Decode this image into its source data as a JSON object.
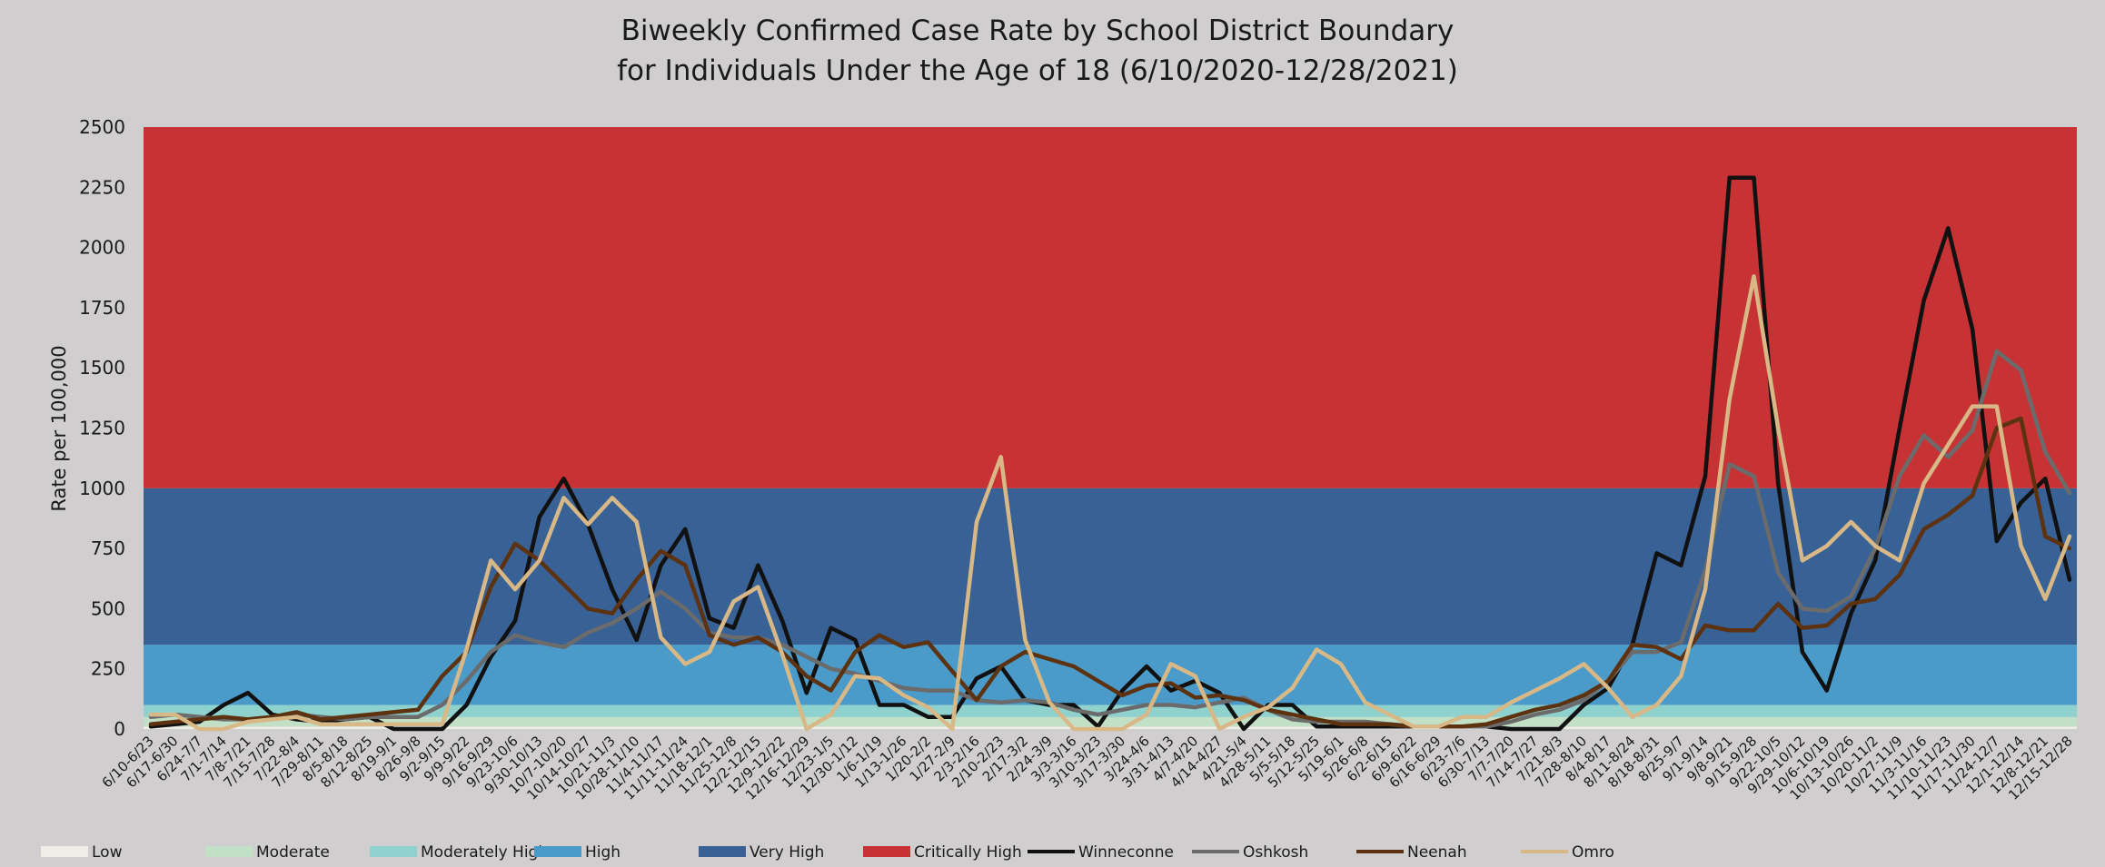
{
  "chart_data": {
    "type": "line",
    "title_line1": "Biweekly Confirmed Case Rate by School District Boundary",
    "title_line2": "for Individuals Under the Age of 18  (6/10/2020-12/28/2021)",
    "xlabel": "",
    "ylabel": "Rate per 100,000",
    "ylim": [
      0,
      2500
    ],
    "yticks": [
      0,
      250,
      500,
      750,
      1000,
      1250,
      1500,
      1750,
      2000,
      2250,
      2500
    ],
    "grid": false,
    "legend_position": "bottom",
    "categories": [
      "6/10-6/23",
      "6/17-6/30",
      "6/24-7/7",
      "7/1-7/14",
      "7/8-7/21",
      "7/15-7/28",
      "7/22-8/4",
      "7/29-8/11",
      "8/5-8/18",
      "8/12-8/25",
      "8/19-9/1",
      "8/26-9/8",
      "9/2-9/15",
      "9/9-9/22",
      "9/16-9/29",
      "9/23-10/6",
      "9/30-10/13",
      "10/7-10/20",
      "10/14-10/27",
      "10/21-11/3",
      "10/28-11/10",
      "11/4-11/17",
      "11/11-11/24",
      "11/18-12/1",
      "11/25-12/8",
      "12/2-12/15",
      "12/9-12/22",
      "12/16-12/29",
      "12/23-1/5",
      "12/30-1/12",
      "1/6-1/19",
      "1/13-1/26",
      "1/20-2/2",
      "1/27-2/9",
      "2/3-2/16",
      "2/10-2/23",
      "2/17-3/2",
      "2/24-3/9",
      "3/3-3/16",
      "3/10-3/23",
      "3/17-3/30",
      "3/24-4/6",
      "3/31-4/13",
      "4/7-4/20",
      "4/14-4/27",
      "4/21-5/4",
      "4/28-5/11",
      "5/5-5/18",
      "5/12-5/25",
      "5/19-6/1",
      "5/26-6/8",
      "6/2-6/15",
      "6/9-6/22",
      "6/16-6/29",
      "6/23-7/6",
      "6/30-7/13",
      "7/7-7/20",
      "7/14-7/27",
      "7/21-8/3",
      "7/28-8/10",
      "8/4-8/17",
      "8/11-8/24",
      "8/18-8/31",
      "8/25-9/7",
      "9/1-9/14",
      "9/8-9/21",
      "9/15-9/28",
      "9/22-10/5",
      "9/29-10/12",
      "10/6-10/19",
      "10/13-10/26",
      "10/20-11/2",
      "10/27-11/9",
      "11/3-11/16",
      "11/10-11/23",
      "11/17-11/30",
      "11/24-12/7",
      "12/1-12/14",
      "12/8-12/21",
      "12/15-12/28"
    ],
    "bands": [
      {
        "name": "Low",
        "from": 0,
        "to": 10,
        "color": "#eeeee6"
      },
      {
        "name": "Moderate",
        "from": 10,
        "to": 50,
        "color": "#c2e0c6"
      },
      {
        "name": "Moderately High",
        "from": 50,
        "to": 100,
        "color": "#8fd1cd"
      },
      {
        "name": "High",
        "from": 100,
        "to": 350,
        "color": "#4a9bc9"
      },
      {
        "name": "Very High",
        "from": 350,
        "to": 1000,
        "color": "#386196"
      },
      {
        "name": "Critically High",
        "from": 1000,
        "to": 2500,
        "color": "#c73335"
      }
    ],
    "series": [
      {
        "name": "Winneconne",
        "color": "#111111",
        "values": [
          10,
          20,
          30,
          100,
          150,
          60,
          40,
          30,
          40,
          50,
          0,
          0,
          0,
          100,
          300,
          450,
          880,
          1040,
          850,
          580,
          370,
          680,
          830,
          460,
          420,
          680,
          450,
          150,
          420,
          370,
          100,
          100,
          50,
          50,
          210,
          260,
          120,
          100,
          100,
          10,
          160,
          260,
          160,
          200,
          150,
          0,
          100,
          100,
          10,
          10,
          10,
          10,
          10,
          10,
          10,
          10,
          0,
          0,
          0,
          100,
          170,
          350,
          730,
          680,
          1050,
          2290,
          2290,
          1020,
          320,
          160,
          480,
          700,
          1250,
          1780,
          2080,
          1660,
          780,
          940,
          1040,
          620
        ]
      },
      {
        "name": "Oshkosh",
        "color": "#6b6b6b",
        "values": [
          50,
          60,
          50,
          40,
          40,
          50,
          60,
          50,
          40,
          50,
          50,
          50,
          100,
          200,
          320,
          390,
          360,
          340,
          400,
          440,
          500,
          570,
          500,
          400,
          380,
          380,
          350,
          300,
          250,
          230,
          200,
          170,
          160,
          160,
          120,
          110,
          120,
          110,
          80,
          60,
          80,
          100,
          100,
          90,
          110,
          130,
          80,
          40,
          30,
          30,
          30,
          20,
          10,
          10,
          10,
          10,
          30,
          60,
          80,
          120,
          200,
          320,
          320,
          360,
          660,
          1100,
          1050,
          650,
          500,
          490,
          550,
          750,
          1050,
          1220,
          1130,
          1240,
          1570,
          1490,
          1150,
          980
        ]
      },
      {
        "name": "Neenah",
        "color": "#5c3211",
        "values": [
          20,
          30,
          40,
          50,
          40,
          50,
          70,
          40,
          50,
          60,
          70,
          80,
          220,
          320,
          590,
          770,
          700,
          600,
          500,
          480,
          620,
          740,
          680,
          390,
          350,
          380,
          320,
          220,
          160,
          320,
          390,
          340,
          360,
          240,
          120,
          260,
          320,
          290,
          260,
          200,
          140,
          180,
          190,
          130,
          140,
          120,
          80,
          60,
          40,
          20,
          20,
          20,
          10,
          10,
          10,
          20,
          50,
          80,
          100,
          140,
          200,
          350,
          340,
          290,
          430,
          410,
          410,
          520,
          420,
          430,
          520,
          540,
          640,
          830,
          890,
          970,
          1250,
          1290,
          800,
          750
        ]
      },
      {
        "name": "Omro",
        "color": "#d7b886",
        "values": [
          60,
          60,
          0,
          0,
          30,
          40,
          50,
          20,
          20,
          20,
          20,
          20,
          20,
          330,
          700,
          580,
          700,
          960,
          850,
          960,
          860,
          380,
          270,
          320,
          530,
          590,
          310,
          0,
          60,
          220,
          210,
          140,
          90,
          0,
          860,
          1130,
          370,
          110,
          0,
          0,
          0,
          60,
          270,
          220,
          0,
          50,
          90,
          170,
          330,
          270,
          110,
          60,
          10,
          10,
          50,
          50,
          110,
          160,
          210,
          270,
          170,
          50,
          100,
          220,
          580,
          1370,
          1880,
          1250,
          700,
          760,
          860,
          760,
          700,
          1020,
          1180,
          1340,
          1340,
          760,
          540,
          800
        ]
      }
    ]
  }
}
